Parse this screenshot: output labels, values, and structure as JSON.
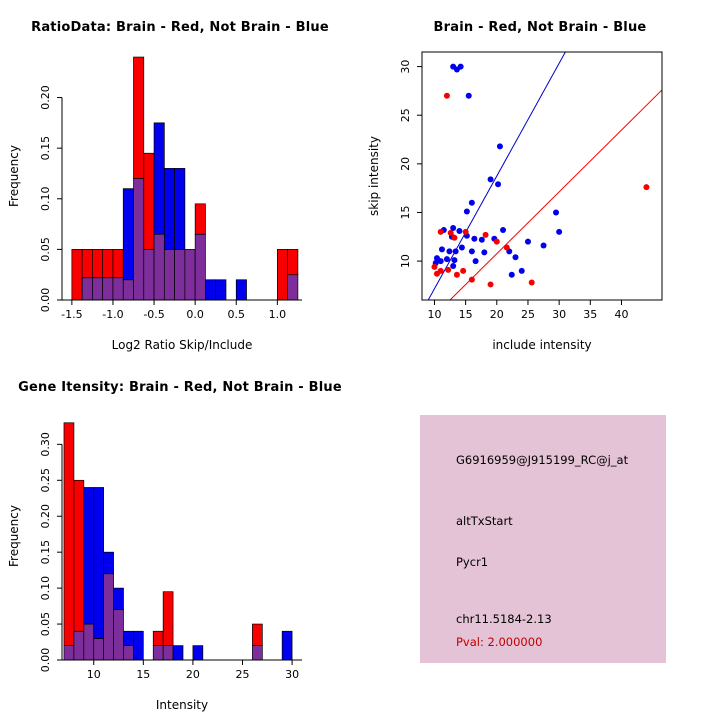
{
  "colors": {
    "red": "#F80000",
    "blue": "#0000EE",
    "overlap": "#7D2E9B",
    "axis": "#000000",
    "info_bg": "#E5C3D6",
    "pval_red": "#C00000"
  },
  "chart_data": [
    {
      "type": "bar",
      "subtype": "overlaid-histogram",
      "title": "RatioData: Brain - Red, Not Brain - Blue",
      "xlabel": "Log2 Ratio Skip/Include",
      "ylabel": "Frequency",
      "legend": {
        "red": "Brain",
        "blue": "Not Brain"
      },
      "xlim": [
        -1.62,
        1.3
      ],
      "ylim": [
        0,
        0.245
      ],
      "xticks": [
        -1.5,
        -1.0,
        -0.5,
        0.0,
        0.5,
        1.0
      ],
      "xtick_labels": [
        "-1.5",
        "-1.0",
        "-0.5",
        "0.0",
        "0.5",
        "1.0"
      ],
      "yticks": [
        0,
        0.05,
        0.1,
        0.15,
        0.2
      ],
      "ytick_labels": [
        "0.00",
        "0.05",
        "0.10",
        "0.15",
        "0.20"
      ],
      "grid": false,
      "bin_width": 0.125,
      "series_colors": {
        "red": "#F80000",
        "blue": "#0000EE",
        "overlap": "#7D2E9B"
      },
      "bins": [
        {
          "x": -1.5,
          "red": 0.05,
          "blue": 0
        },
        {
          "x": -1.375,
          "red": 0.05,
          "blue": 0.022
        },
        {
          "x": -1.25,
          "red": 0.05,
          "blue": 0.022
        },
        {
          "x": -1.125,
          "red": 0.05,
          "blue": 0.022
        },
        {
          "x": -1.0,
          "red": 0.05,
          "blue": 0.022
        },
        {
          "x": -0.875,
          "red": 0.02,
          "blue": 0.11
        },
        {
          "x": -0.75,
          "red": 0.24,
          "blue": 0.12
        },
        {
          "x": -0.625,
          "red": 0.145,
          "blue": 0.05
        },
        {
          "x": -0.5,
          "red": 0.065,
          "blue": 0.175
        },
        {
          "x": -0.375,
          "red": 0.05,
          "blue": 0.13
        },
        {
          "x": -0.25,
          "red": 0.05,
          "blue": 0.13
        },
        {
          "x": -0.125,
          "red": 0.05,
          "blue": 0.05
        },
        {
          "x": 0.0,
          "red": 0.095,
          "blue": 0.065
        },
        {
          "x": 0.125,
          "red": 0,
          "blue": 0.02
        },
        {
          "x": 0.25,
          "red": 0,
          "blue": 0.02
        },
        {
          "x": 0.5,
          "red": 0,
          "blue": 0.02
        },
        {
          "x": 1.0,
          "red": 0.05,
          "blue": 0
        },
        {
          "x": 1.125,
          "red": 0.05,
          "blue": 0.025
        }
      ]
    },
    {
      "type": "scatter",
      "title": "Brain - Red, Not Brain - Blue",
      "xlabel": "include intensity",
      "ylabel": "skip intensity",
      "xlim": [
        8,
        46.5
      ],
      "ylim": [
        6,
        31.5
      ],
      "xticks": [
        10,
        15,
        20,
        25,
        30,
        35,
        40
      ],
      "xtick_labels": [
        "10",
        "15",
        "20",
        "25",
        "30",
        "35",
        "40"
      ],
      "yticks": [
        10,
        15,
        20,
        25,
        30
      ],
      "ytick_labels": [
        "10",
        "15",
        "20",
        "25",
        "30"
      ],
      "grid": false,
      "box": true,
      "series": [
        {
          "name": "Not Brain",
          "color": "#0000EE",
          "points": [
            [
              13,
              30
            ],
            [
              14.2,
              30
            ],
            [
              13.6,
              29.7
            ],
            [
              15.5,
              27
            ],
            [
              20.5,
              21.8
            ],
            [
              19,
              18.4
            ],
            [
              20.2,
              17.9
            ],
            [
              16,
              16
            ],
            [
              15.2,
              15.1
            ],
            [
              29.5,
              15
            ],
            [
              11.5,
              13.2
            ],
            [
              13,
              13.4
            ],
            [
              14,
              13.1
            ],
            [
              21,
              13.2
            ],
            [
              30,
              13
            ],
            [
              12.8,
              12.5
            ],
            [
              15.2,
              12.6
            ],
            [
              16.4,
              12.3
            ],
            [
              17.6,
              12.2
            ],
            [
              19.6,
              12.3
            ],
            [
              25,
              12
            ],
            [
              11.2,
              11.2
            ],
            [
              12.4,
              11
            ],
            [
              13.4,
              11
            ],
            [
              14.4,
              11.4
            ],
            [
              16,
              11
            ],
            [
              18,
              10.9
            ],
            [
              22,
              11
            ],
            [
              27.5,
              11.6
            ],
            [
              10.4,
              10.3
            ],
            [
              11,
              10
            ],
            [
              12,
              10.2
            ],
            [
              13.2,
              10.1
            ],
            [
              16.6,
              10
            ],
            [
              23,
              10.4
            ],
            [
              10.2,
              9.8
            ],
            [
              13,
              9.5
            ],
            [
              24,
              9
            ],
            [
              22.4,
              8.6
            ]
          ]
        },
        {
          "name": "Brain",
          "color": "#F80000",
          "points": [
            [
              12,
              27
            ],
            [
              44,
              17.6
            ],
            [
              11,
              13
            ],
            [
              12.6,
              12.9
            ],
            [
              15,
              13
            ],
            [
              18.2,
              12.7
            ],
            [
              13.2,
              12.4
            ],
            [
              20,
              12
            ],
            [
              21.6,
              11.4
            ],
            [
              10,
              9.4
            ],
            [
              11,
              9
            ],
            [
              12.2,
              9.1
            ],
            [
              14.6,
              9
            ],
            [
              10.4,
              8.7
            ],
            [
              13.6,
              8.6
            ],
            [
              16,
              8.1
            ],
            [
              19,
              7.6
            ],
            [
              25.6,
              7.8
            ]
          ]
        }
      ],
      "lines": [
        {
          "name": "not-brain-fit",
          "color": "#0000CD",
          "from": [
            9,
            6
          ],
          "to": [
            31,
            31.5
          ]
        },
        {
          "name": "brain-fit",
          "color": "#F80000",
          "from": [
            12.5,
            6
          ],
          "to": [
            46.5,
            27.6
          ]
        }
      ]
    },
    {
      "type": "bar",
      "subtype": "overlaid-histogram",
      "title": "Gene Itensity: Brain - Red, Not Brain - Blue",
      "xlabel": "Intensity",
      "ylabel": "Frequency",
      "legend": {
        "red": "Brain",
        "blue": "Not Brain"
      },
      "xlim": [
        6.8,
        31
      ],
      "ylim": [
        0,
        0.345
      ],
      "xticks": [
        10,
        15,
        20,
        25,
        30
      ],
      "xtick_labels": [
        "10",
        "15",
        "20",
        "25",
        "30"
      ],
      "yticks": [
        0,
        0.05,
        0.1,
        0.15,
        0.2,
        0.25,
        0.3
      ],
      "ytick_labels": [
        "0.00",
        "0.05",
        "0.10",
        "0.15",
        "0.20",
        "0.25",
        "0.30"
      ],
      "grid": false,
      "bin_width": 1,
      "series_colors": {
        "red": "#F80000",
        "blue": "#0000EE",
        "overlap": "#7D2E9B"
      },
      "bins": [
        {
          "x": 7,
          "red": 0.33,
          "blue": 0.02
        },
        {
          "x": 8,
          "red": 0.25,
          "blue": 0.04
        },
        {
          "x": 9,
          "red": 0.05,
          "blue": 0.24
        },
        {
          "x": 10,
          "red": 0.03,
          "blue": 0.24
        },
        {
          "x": 11,
          "red": 0.12,
          "blue": 0.15
        },
        {
          "x": 12,
          "red": 0.07,
          "blue": 0.1
        },
        {
          "x": 13,
          "red": 0.02,
          "blue": 0.04
        },
        {
          "x": 14,
          "red": 0,
          "blue": 0.04
        },
        {
          "x": 16,
          "red": 0.04,
          "blue": 0.02
        },
        {
          "x": 17,
          "red": 0.095,
          "blue": 0.02
        },
        {
          "x": 18,
          "red": 0,
          "blue": 0.02
        },
        {
          "x": 20,
          "red": 0,
          "blue": 0.02
        },
        {
          "x": 26,
          "red": 0.05,
          "blue": 0.02
        },
        {
          "x": 29,
          "red": 0,
          "blue": 0.04
        }
      ]
    }
  ],
  "info_panel": {
    "bg": "#E5C3D6",
    "probe_id": "G6916959@J915199_RC@j_at",
    "event_type": "altTxStart",
    "gene": "Pycr1",
    "location": "chr11.5184-2.13",
    "pval": "Pval: 2.000000",
    "pval_color": "#C00000"
  }
}
